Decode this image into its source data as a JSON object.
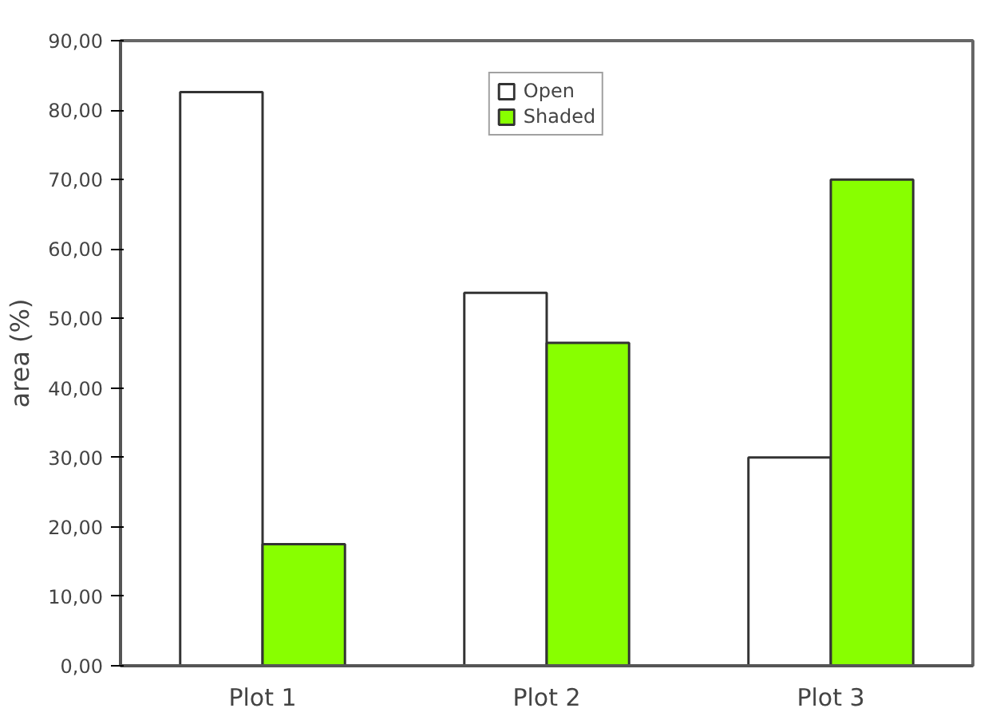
{
  "chart_data": {
    "type": "bar",
    "ylabel": "area (%)",
    "categories": [
      "Plot 1",
      "Plot 2",
      "Plot 3"
    ],
    "series": [
      {
        "name": "Open",
        "color": "#ffffff",
        "values": [
          82.6,
          53.7,
          30.0
        ]
      },
      {
        "name": "Shaded",
        "color": "#88ff00",
        "values": [
          17.5,
          46.5,
          70.0
        ]
      }
    ],
    "ylim": [
      0,
      90
    ],
    "yticks": [
      {
        "value": 0,
        "label": "0,00"
      },
      {
        "value": 10,
        "label": "10,00"
      },
      {
        "value": 20,
        "label": "20,00"
      },
      {
        "value": 30,
        "label": "30,00"
      },
      {
        "value": 40,
        "label": "40,00"
      },
      {
        "value": 50,
        "label": "50,00"
      },
      {
        "value": 60,
        "label": "60,00"
      },
      {
        "value": 70,
        "label": "70,00"
      },
      {
        "value": 80,
        "label": "80,00"
      },
      {
        "value": 90,
        "label": "90,00"
      }
    ],
    "grid": false,
    "legend": "top"
  }
}
